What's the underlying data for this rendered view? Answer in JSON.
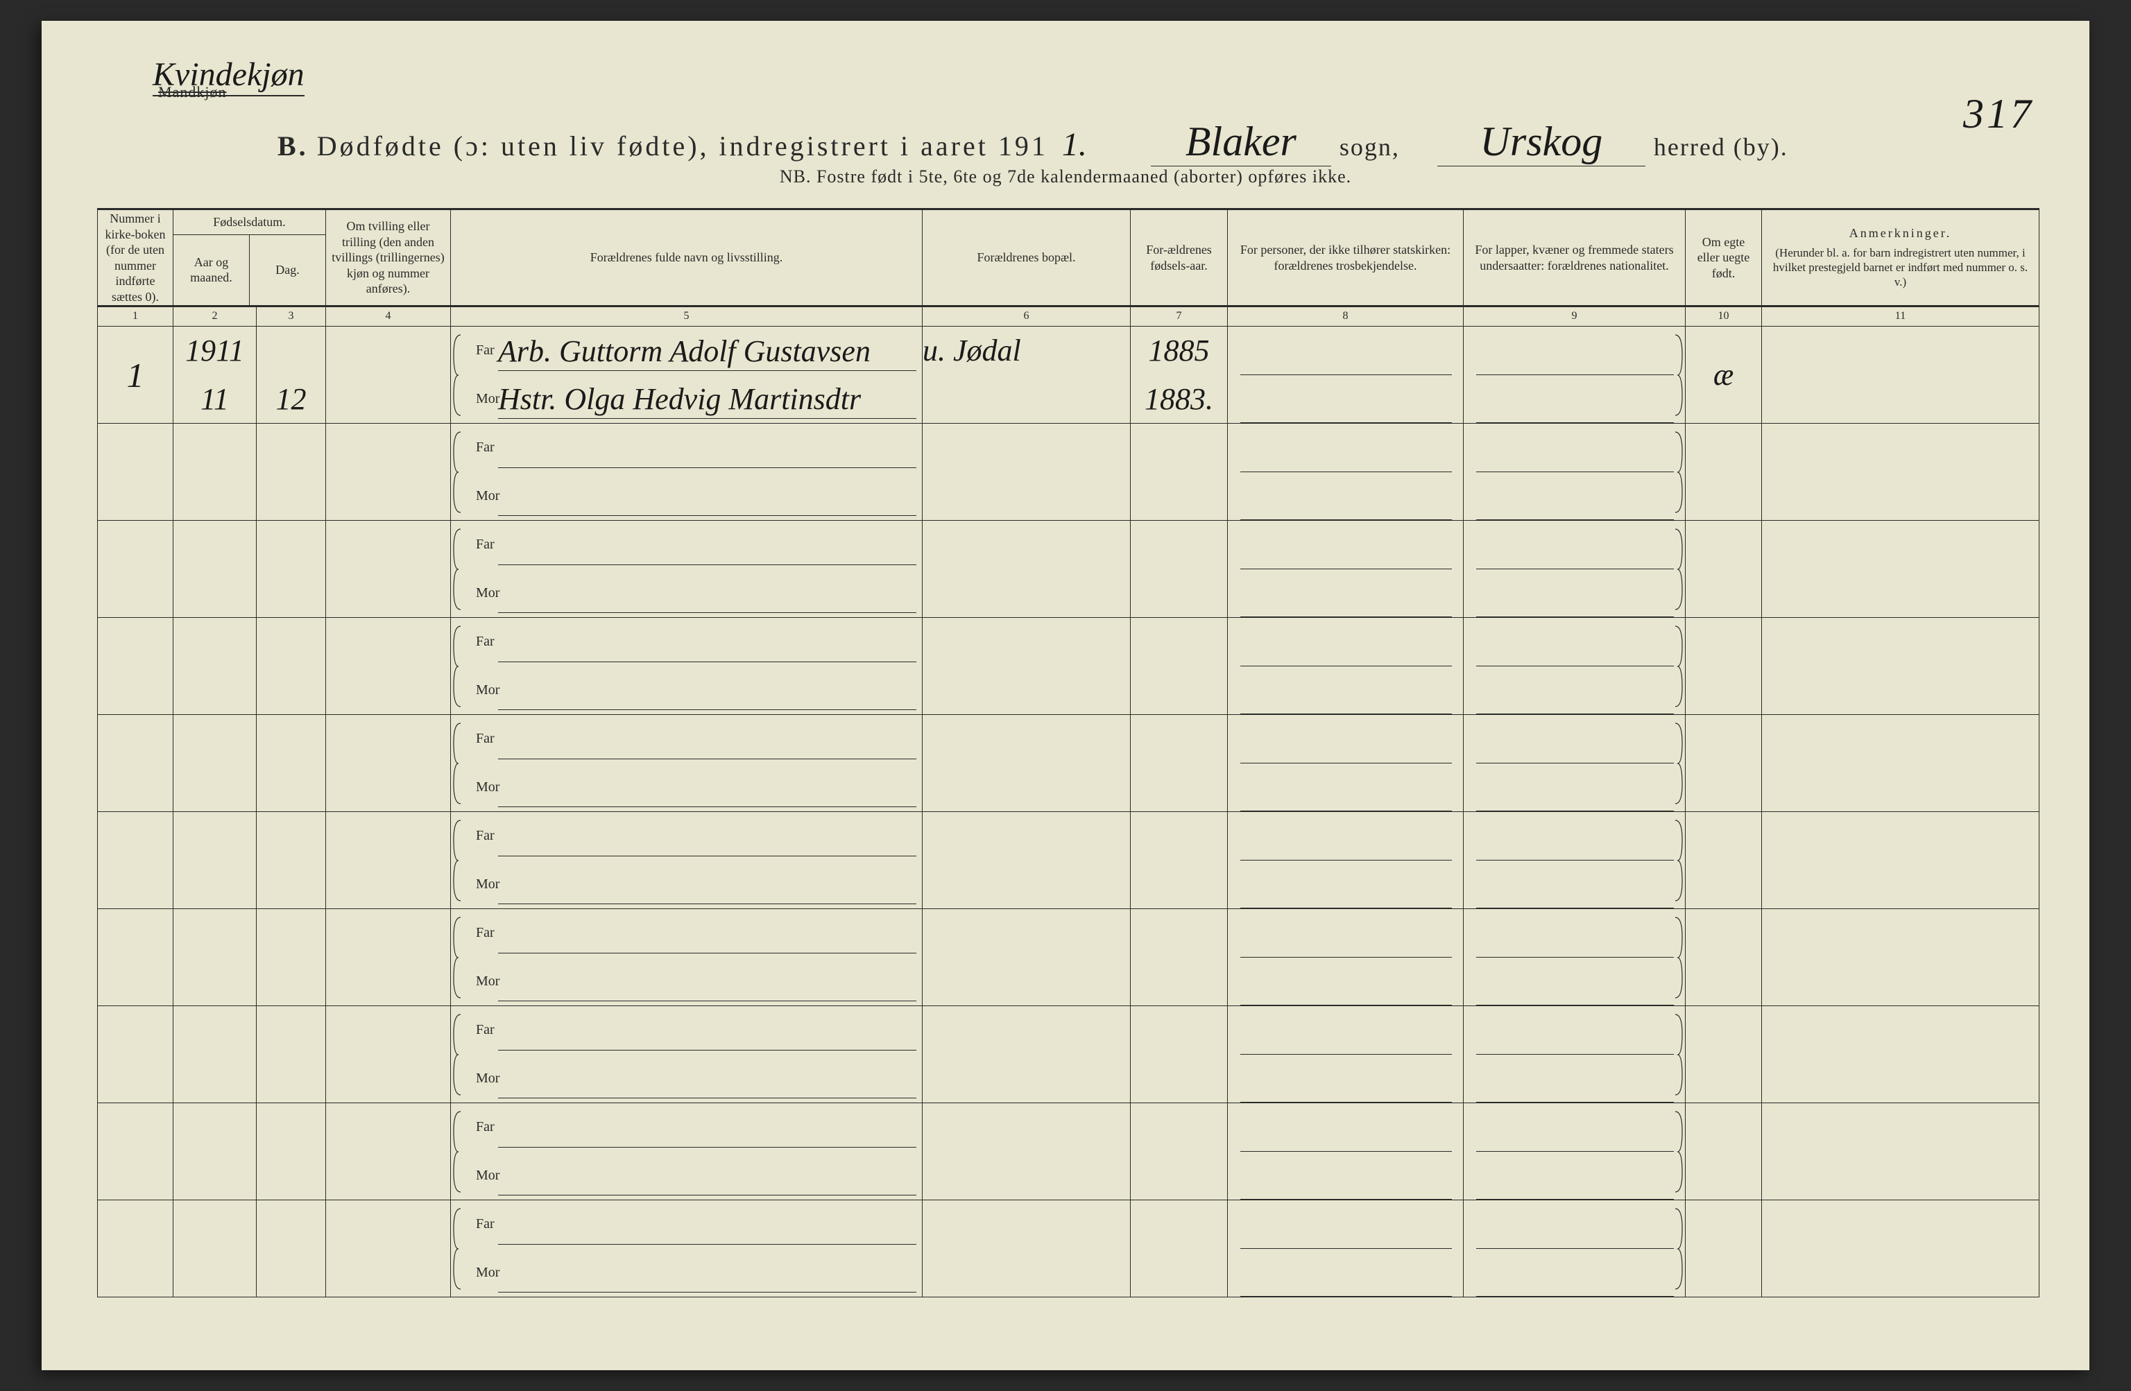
{
  "corner": {
    "handwritten": "Kvindekjøn",
    "printed_struck": "Mandkjøn"
  },
  "page_number_hw": "317",
  "title": {
    "prefix_b": "B.",
    "main": "Dødfødte (ɔ: uten liv fødte), indregistrert i aaret 191",
    "year_suffix_hw": "1.",
    "sogn_hw": "Blaker",
    "sogn_label": "sogn,",
    "herred_hw": "Urskog",
    "herred_label": "herred (by)."
  },
  "subtitle": "NB.  Fostre født i 5te, 6te og 7de kalendermaaned (aborter) opføres ikke.",
  "columns": {
    "c1": "Nummer i kirke-boken (for de uten nummer indførte sættes 0).",
    "c2_group": "Fødselsdatum.",
    "c2": "Aar og maaned.",
    "c3": "Dag.",
    "c4": "Om tvilling eller trilling (den anden tvillings (trillingernes) kjøn og nummer anføres).",
    "c5": "Forældrenes fulde navn og livsstilling.",
    "c6": "Forældrenes bopæl.",
    "c7": "For-ældrenes fødsels-aar.",
    "c8": "For personer, der ikke tilhører statskirken: forældrenes trosbekjendelse.",
    "c9": "For lapper, kvæner og fremmede staters undersaatter: forældrenes nationalitet.",
    "c10": "Om egte eller uegte født.",
    "c11_title": "Anmerkninger.",
    "c11_sub": "(Herunder bl. a. for barn indregistrert uten nummer, i hvilket prestegjeld barnet er indført med nummer o. s. v.)"
  },
  "colnums": [
    "1",
    "2",
    "3",
    "4",
    "5",
    "6",
    "7",
    "8",
    "9",
    "10",
    "11"
  ],
  "labels": {
    "far": "Far",
    "mor": "Mor"
  },
  "rows": [
    {
      "num": "1",
      "year_month_top": "1911",
      "year_month_bot": "11",
      "day": "12",
      "far": "Arb. Guttorm Adolf Gustavsen",
      "mor": "Hstr. Olga Hedvig Martinsdtr",
      "bopael": "u. Jødal",
      "far_year": "1885",
      "mor_year": "1883.",
      "egte": "æ"
    },
    {},
    {},
    {},
    {},
    {},
    {},
    {},
    {},
    {}
  ]
}
